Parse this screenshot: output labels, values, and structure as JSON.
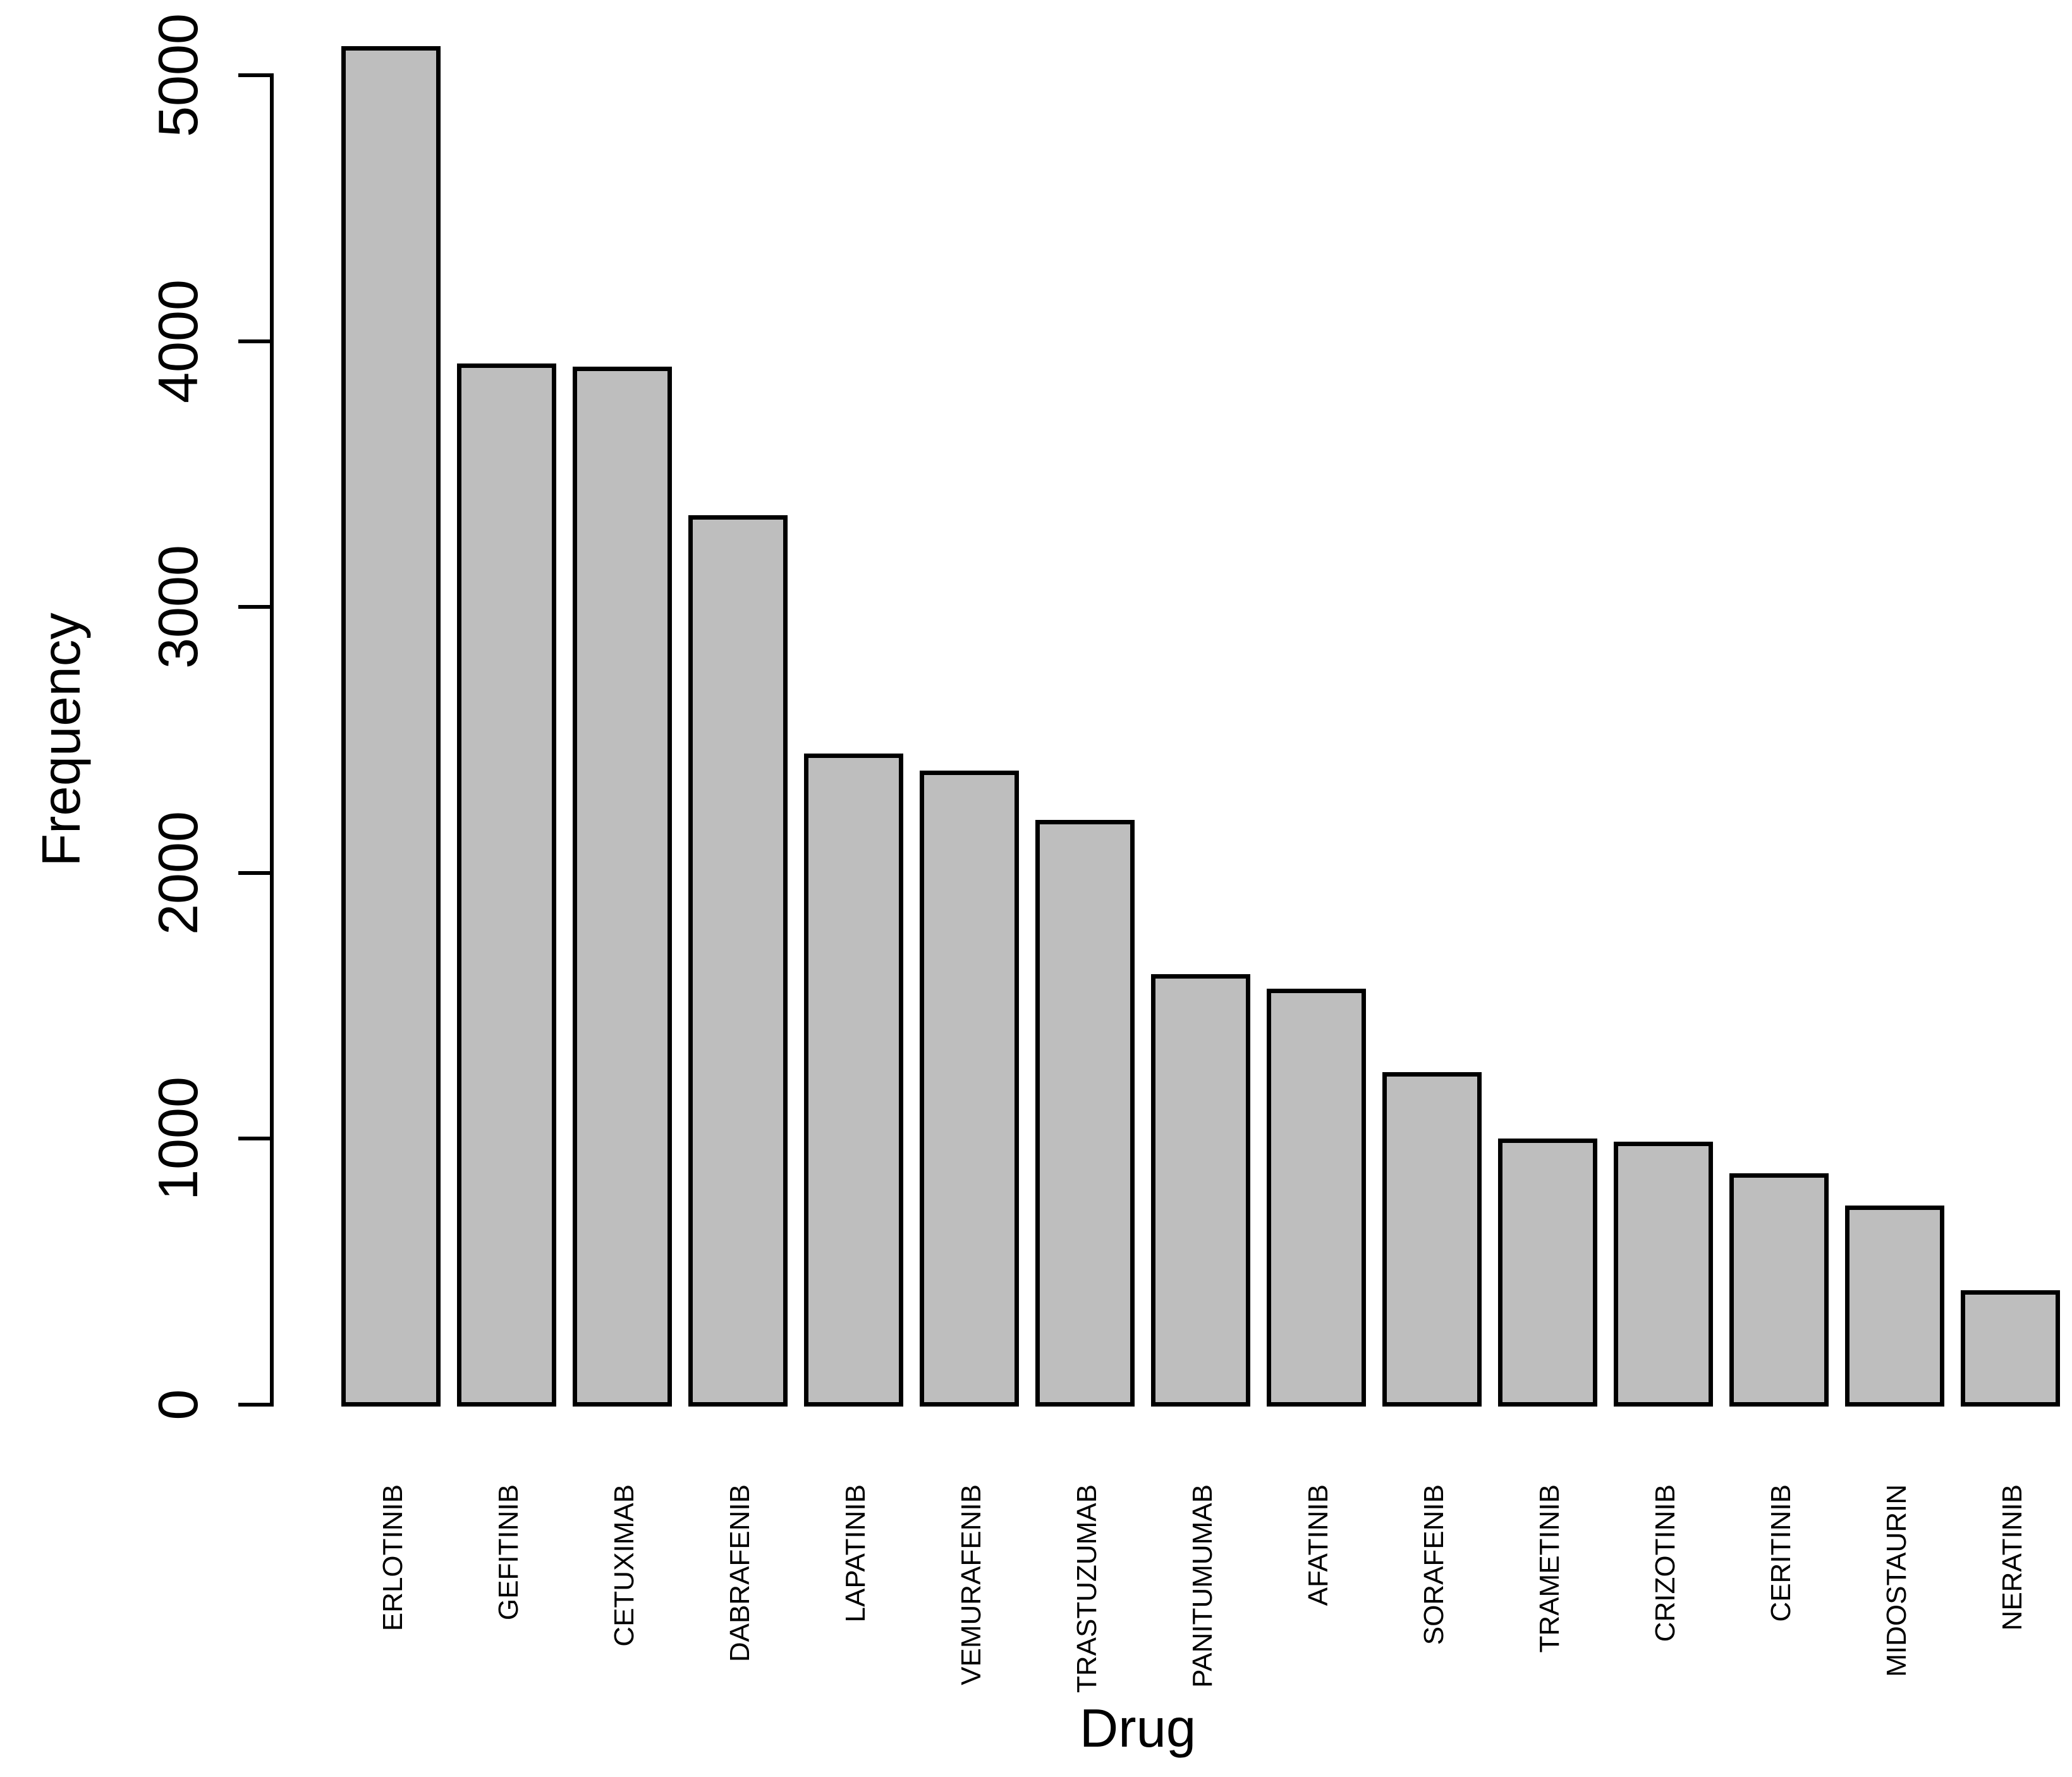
{
  "chart_data": {
    "type": "bar",
    "title": "",
    "xlabel": "Drug",
    "ylabel": "Frequency",
    "categories": [
      "ERLOTINIB",
      "GEFITINIB",
      "CETUXIMAB",
      "DABRAFENIB",
      "LAPATINIB",
      "VEMURAFENIB",
      "TRASTUZUMAB",
      "PANITUMUMAB",
      "AFATINIB",
      "SORAFENIB",
      "TRAMETINIB",
      "CRIZOTINIB",
      "CERITINIB",
      "MIDOSTAURIN",
      "NERATINIB"
    ],
    "values": [
      5110,
      3915,
      3905,
      3345,
      2450,
      2385,
      2200,
      1620,
      1565,
      1250,
      1000,
      990,
      870,
      750,
      430
    ],
    "ylim": [
      0,
      5000
    ],
    "yticks": [
      0,
      1000,
      2000,
      3000,
      4000,
      5000
    ],
    "ytick_labels": [
      "0",
      "1000",
      "2000",
      "3000",
      "4000",
      "5000"
    ],
    "grid": false,
    "legend_position": "none",
    "x_tick_label_rotation": -90,
    "y_tick_label_rotation": -90,
    "bar_fill_color": "#BEBEBE",
    "bar_border_color": "#000000",
    "axis_color": "#000000",
    "text_color": "#000000",
    "background_color": "#FFFFFF"
  }
}
